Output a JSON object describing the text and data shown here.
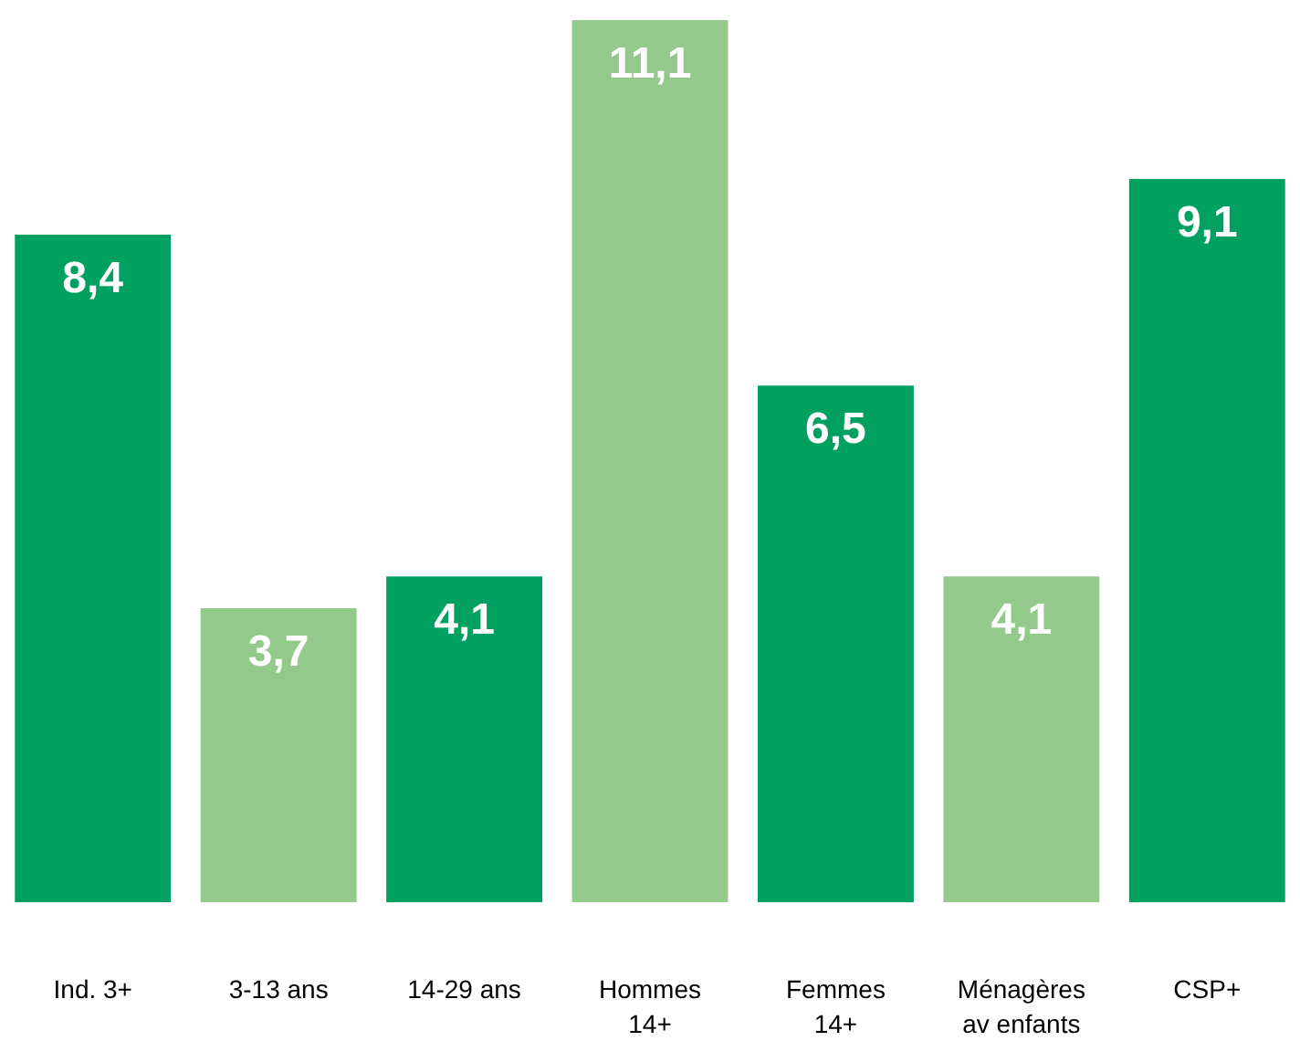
{
  "chart_data": {
    "type": "bar",
    "categories": [
      "Ind. 3+",
      "3-13 ans",
      "14-29 ans",
      "Hommes\n14+",
      "Femmes\n14+",
      "Ménagères\nav enfants",
      "CSP+"
    ],
    "values": [
      8.4,
      3.7,
      4.1,
      11.1,
      6.5,
      4.1,
      9.1
    ],
    "value_labels": [
      "8,4",
      "3,7",
      "4,1",
      "11,1",
      "6,5",
      "4,1",
      "9,1"
    ],
    "colors": [
      "#00a060",
      "#93c98a",
      "#00a060",
      "#93c98a",
      "#00a060",
      "#93c98a",
      "#00a060"
    ],
    "ylim": [
      0,
      11.1
    ],
    "tick_labels": "x"
  }
}
